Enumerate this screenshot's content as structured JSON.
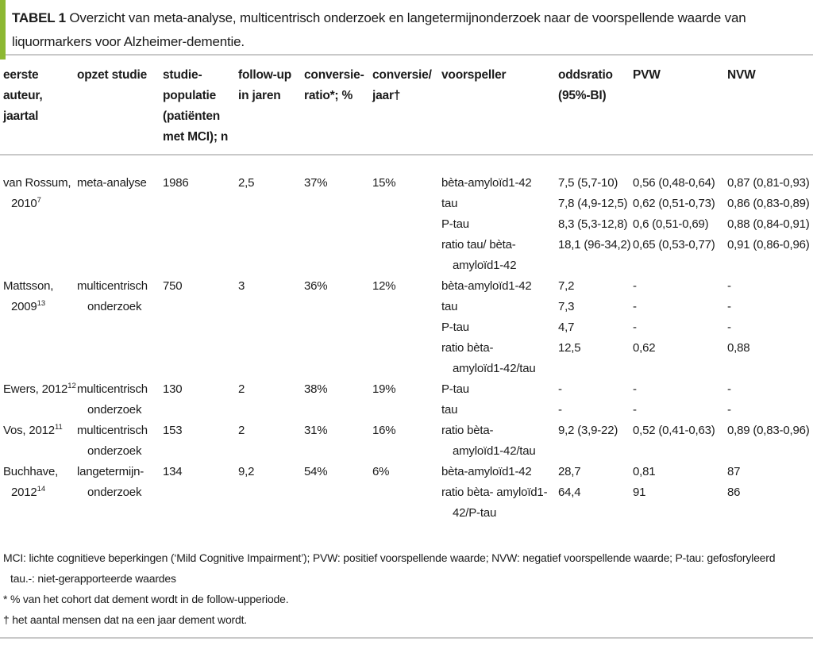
{
  "title": {
    "label": "TABEL 1",
    "text": "Overzicht van meta-analyse, multicentrisch onderzoek en langetermijnonderzoek naar de voorspellende waarde van liquormarkers voor Alzheimer-dementie."
  },
  "colors": {
    "accent_green": "#8cb832",
    "rule_gray": "#c9c9c9",
    "text": "#1b1b1b"
  },
  "table": {
    "columns": [
      "eerste\nauteur,\njaartal",
      "opzet studie",
      "studie-\npopulatie\n(patiënten\nmet MCI); n",
      "follow-up\nin jaren",
      "conversie-\nratio*; %",
      "conversie/\njaar†",
      "voorspeller",
      "oddsratio\n(95%-BI)",
      "PVW",
      "NVW"
    ],
    "rows": [
      {
        "author": {
          "line1": "van Rossum,",
          "line2": "2010",
          "sup": "7"
        },
        "design": "meta-analyse",
        "population": "1986",
        "followup_years": "2,5",
        "conversion_ratio": "37%",
        "conversion_per_year": "15%",
        "predictors": [
          {
            "name": "bèta-amyloïd1-42",
            "oddsratio": "7,5 (5,7-10)",
            "pvw": "0,56 (0,48-0,64)",
            "nvw": "0,87 (0,81-0,93)"
          },
          {
            "name": "tau",
            "oddsratio": "7,8 (4,9-12,5)",
            "pvw": "0,62 (0,51-0,73)",
            "nvw": "0,86 (0,83-0,89)"
          },
          {
            "name": "P-tau",
            "oddsratio": "8,3 (5,3-12,8)",
            "pvw": "0,6 (0,51-0,69)",
            "nvw": "0,88 (0,84-0,91)"
          },
          {
            "name": "ratio tau/ bèta-\namyloïd1-42",
            "oddsratio": "18,1 (96-34,2)",
            "pvw": "0,65 (0,53-0,77)",
            "nvw": "0,91 (0,86-0,96)"
          }
        ]
      },
      {
        "author": {
          "line1": "Mattsson,",
          "line2": "2009",
          "sup": "13"
        },
        "design": "multicentrisch\nonderzoek",
        "population": "750",
        "followup_years": "3",
        "conversion_ratio": "36%",
        "conversion_per_year": "12%",
        "predictors": [
          {
            "name": "bèta-amyloïd1-42",
            "oddsratio": "7,2",
            "pvw": "-",
            "nvw": "-"
          },
          {
            "name": "tau",
            "oddsratio": "7,3",
            "pvw": "-",
            "nvw": "-"
          },
          {
            "name": "P-tau",
            "oddsratio": "4,7",
            "pvw": "-",
            "nvw": "-"
          },
          {
            "name": "ratio bèta-\namyloïd1-42/tau",
            "oddsratio": "12,5",
            "pvw": " 0,62",
            "nvw": " 0,88"
          }
        ]
      },
      {
        "author": {
          "line1": "Ewers, 2012",
          "sup": "12"
        },
        "design": "multicentrisch\nonderzoek",
        "population": "130",
        "followup_years": "2",
        "conversion_ratio": "38%",
        "conversion_per_year": "19%",
        "predictors": [
          {
            "name": "P-tau",
            "oddsratio": "-",
            "pvw": "-",
            "nvw": "-"
          },
          {
            "name": "tau",
            "oddsratio": "-",
            "pvw": "-",
            "nvw": "-"
          }
        ]
      },
      {
        "author": {
          "line1": "Vos, 2012",
          "sup": "11"
        },
        "design": "multicentrisch\nonderzoek",
        "population": "153",
        "followup_years": "2",
        "conversion_ratio": "31%",
        "conversion_per_year": "16%",
        "predictors": [
          {
            "name": "ratio bèta-\namyloïd1-42/tau",
            "oddsratio": "9,2 (3,9-22)",
            "pvw": "0,52 (0,41-0,63)",
            "nvw": "0,89 (0,83-0,96)"
          }
        ]
      },
      {
        "author": {
          "line1": "Buchhave,",
          "line2": "2012",
          "sup": "14"
        },
        "design": "langetermijn-\nonderzoek",
        "population": "134",
        "followup_years": "9,2",
        "conversion_ratio": "54%",
        "conversion_per_year": "6%",
        "predictors": [
          {
            "name": "bèta-amyloïd1-42",
            "oddsratio": "28,7",
            "pvw": " 0,81",
            "nvw": "87"
          },
          {
            "name": "ratio bèta- amyloïd1-\n42/P-tau",
            "oddsratio": "64,4",
            "pvw": "91",
            "nvw": "86"
          }
        ]
      }
    ]
  },
  "footnotes": [
    "MCI: lichte cognitieve beperkingen (‘Mild Cognitive Impairment’); PVW: positief voorspellende waarde; NVW: negatief voorspellende waarde; P-tau: gefosforyleerd\ntau.-: niet-gerapporteerde waardes",
    "* % van het cohort dat dement wordt in de follow-upperiode.",
    "† het aantal mensen dat na een jaar dement wordt."
  ]
}
